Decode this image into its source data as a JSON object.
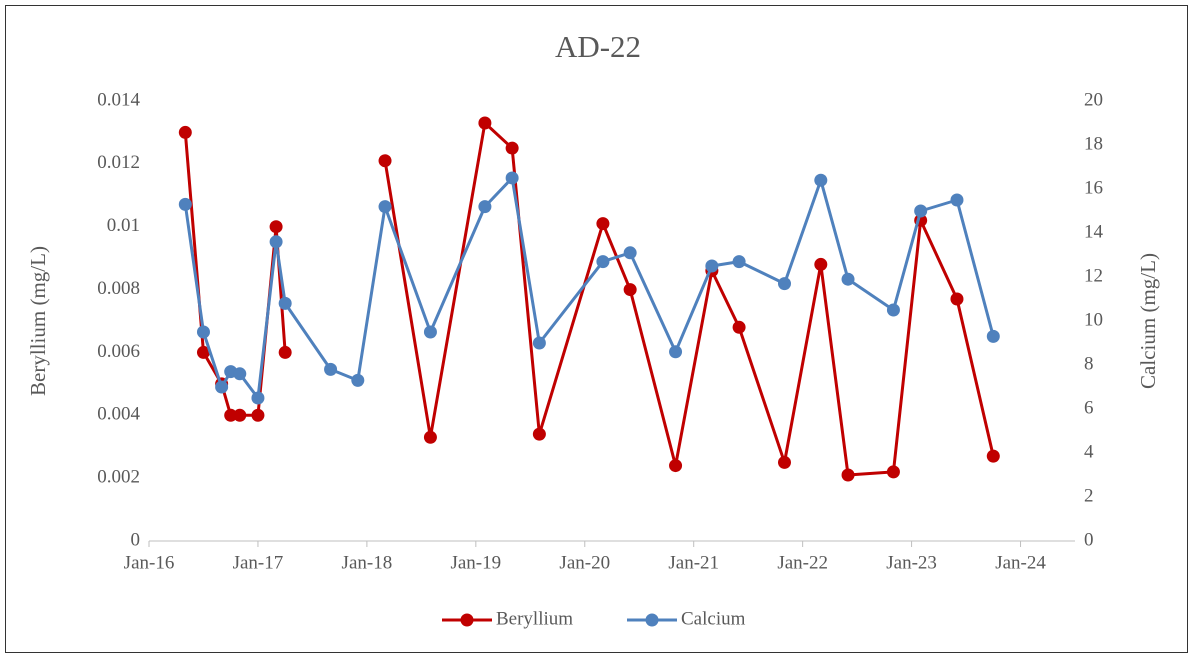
{
  "chart_data": {
    "type": "line",
    "title": "AD-22",
    "y_label": "Beryllium (mg/L)",
    "y2_label": "Calcium (mg/L)",
    "x": [
      "2016-05",
      "2016-07",
      "2016-09",
      "2016-10",
      "2016-11",
      "2017-01",
      "2017-03",
      "2017-04",
      "2017-09",
      "2017-12",
      "2018-03",
      "2018-08",
      "2019-02",
      "2019-05",
      "2019-08",
      "2020-03",
      "2020-06",
      "2020-11",
      "2021-03",
      "2021-06",
      "2021-11",
      "2022-03",
      "2022-06",
      "2022-11",
      "2023-02",
      "2023-06",
      "2023-10"
    ],
    "series": [
      {
        "name": "Beryllium",
        "color": "#c00000",
        "axis": "y",
        "values": [
          0.013,
          0.006,
          0.005,
          0.004,
          0.004,
          0.004,
          0.01,
          0.006,
          null,
          null,
          0.0121,
          0.0033,
          0.0133,
          0.0125,
          0.0034,
          0.0101,
          0.008,
          0.0024,
          0.0086,
          0.0068,
          0.0025,
          0.0088,
          0.0021,
          0.0022,
          0.0102,
          0.0077,
          0.0027
        ]
      },
      {
        "name": "Calcium",
        "color": "#4f81bd",
        "axis": "y2",
        "values": [
          15.3,
          9.5,
          7.0,
          7.7,
          7.6,
          6.5,
          13.6,
          10.8,
          7.8,
          7.3,
          15.2,
          9.5,
          15.2,
          16.5,
          9.0,
          12.7,
          13.1,
          8.6,
          12.5,
          12.7,
          11.7,
          16.4,
          11.9,
          10.5,
          15.0,
          15.5,
          9.3
        ]
      }
    ],
    "xlim": [
      "2016-01",
      "2024-07"
    ],
    "xticks": [
      {
        "value": "2016-01",
        "label": "Jan-16"
      },
      {
        "value": "2017-01",
        "label": "Jan-17"
      },
      {
        "value": "2018-01",
        "label": "Jan-18"
      },
      {
        "value": "2019-01",
        "label": "Jan-19"
      },
      {
        "value": "2020-01",
        "label": "Jan-20"
      },
      {
        "value": "2021-01",
        "label": "Jan-21"
      },
      {
        "value": "2022-01",
        "label": "Jan-22"
      },
      {
        "value": "2023-01",
        "label": "Jan-23"
      },
      {
        "value": "2024-01",
        "label": "Jan-24"
      }
    ],
    "ylim": [
      0,
      0.014
    ],
    "yticks": [
      0,
      0.002,
      0.004,
      0.006,
      0.008,
      0.01,
      0.012,
      0.014
    ],
    "y2lim": [
      0,
      20
    ],
    "y2ticks": [
      0,
      2,
      4,
      6,
      8,
      10,
      12,
      14,
      16,
      18,
      20
    ],
    "legend": "bottom",
    "grid": false
  }
}
